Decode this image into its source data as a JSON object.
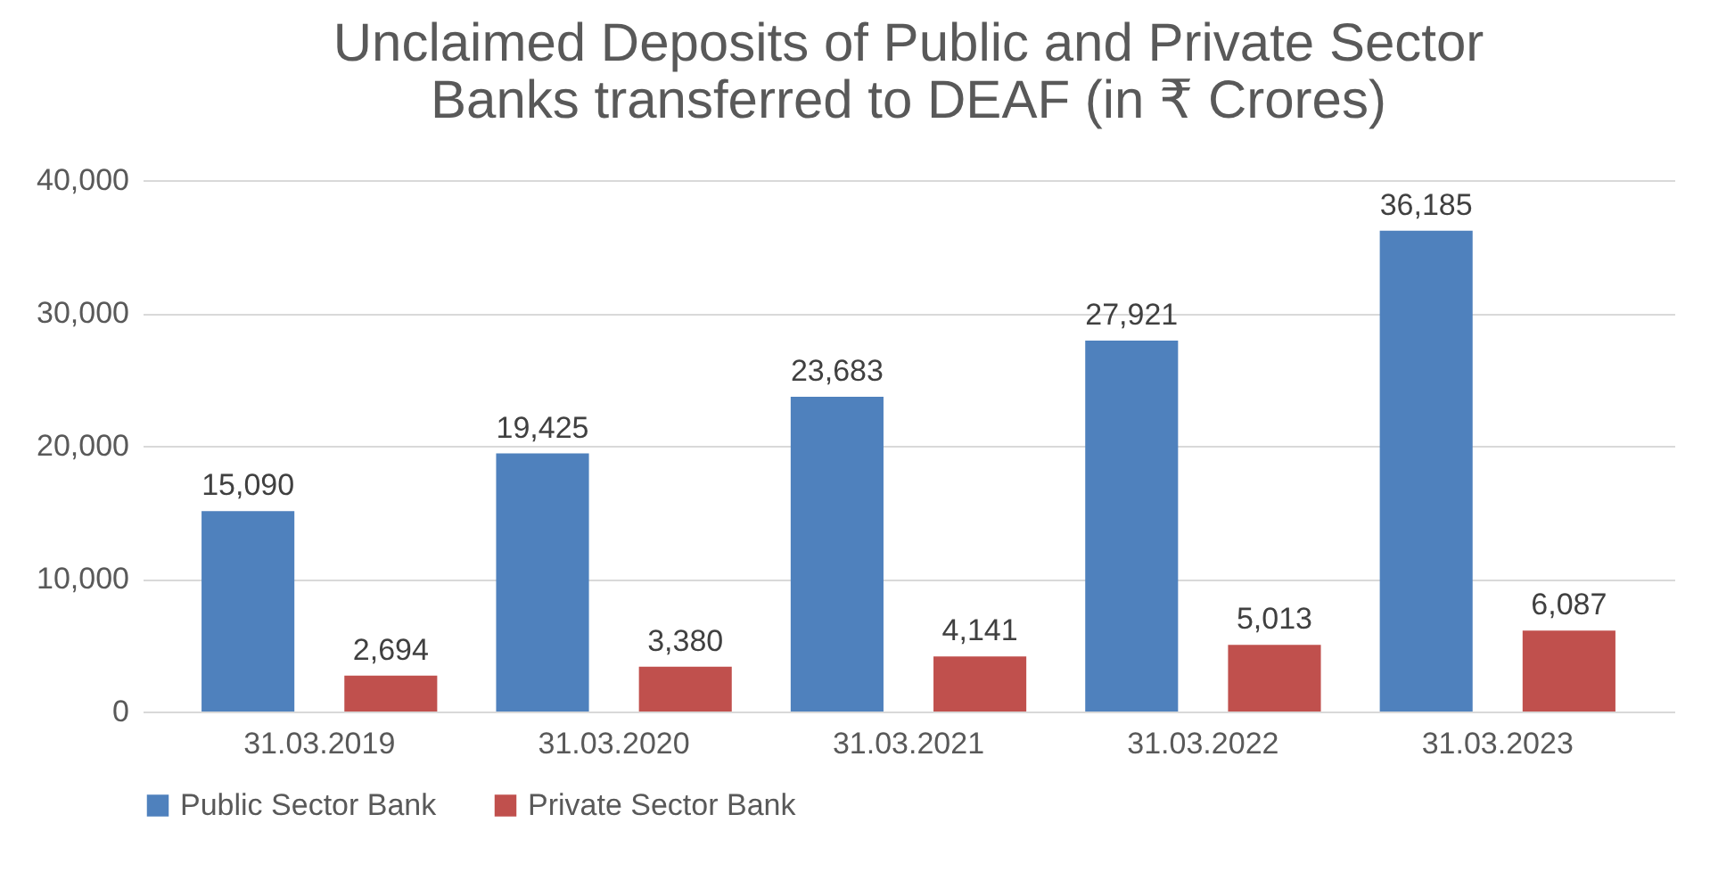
{
  "chart_data": {
    "type": "bar",
    "title": [
      "Unclaimed Deposits of Public and Private Sector",
      "Banks transferred to DEAF (in ₹ Crores)"
    ],
    "categories": [
      "31.03.2019",
      "31.03.2020",
      "31.03.2021",
      "31.03.2022",
      "31.03.2023"
    ],
    "series": [
      {
        "name": "Public Sector Bank",
        "color": "#4f81bd",
        "values": [
          15090,
          19425,
          23683,
          27921,
          36185
        ],
        "value_labels": [
          "15,090",
          "19,425",
          "23,683",
          "27,921",
          "36,185"
        ]
      },
      {
        "name": "Private Sector Bank",
        "color": "#c0504d",
        "values": [
          2694,
          3380,
          4141,
          5013,
          6087
        ],
        "value_labels": [
          "2,694",
          "3,380",
          "4,141",
          "5,013",
          "6,087"
        ]
      }
    ],
    "ylim": [
      0,
      40000
    ],
    "yticks": [
      0,
      {
        "value": 10000,
        "label": "10,000"
      },
      {
        "value": 20000,
        "label": "20,000"
      },
      {
        "value": 30000,
        "label": "30,000"
      },
      {
        "value": 40000,
        "label": "40,000"
      }
    ],
    "grid": "y",
    "legend": "bottom"
  }
}
